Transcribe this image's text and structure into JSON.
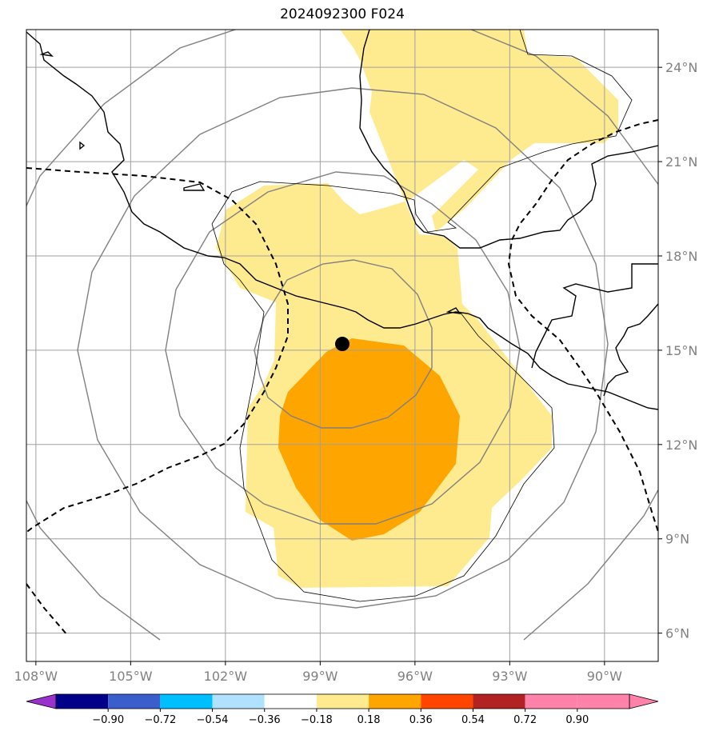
{
  "title": "2024092300 F024",
  "map": {
    "lon_range": [
      -108.3,
      -88.3
    ],
    "lat_range": [
      5.1,
      25.2
    ],
    "lon_ticks": [
      {
        "value": -108,
        "label": "108°W"
      },
      {
        "value": -105,
        "label": "105°W"
      },
      {
        "value": -102,
        "label": "102°W"
      },
      {
        "value": -99,
        "label": "99°W"
      },
      {
        "value": -96,
        "label": "96°W"
      },
      {
        "value": -93,
        "label": "93°W"
      },
      {
        "value": -90,
        "label": "90°W"
      }
    ],
    "lat_ticks": [
      {
        "value": 6,
        "label": "6°N"
      },
      {
        "value": 9,
        "label": "9°N"
      },
      {
        "value": 12,
        "label": "12°N"
      },
      {
        "value": 15,
        "label": "15°N"
      },
      {
        "value": 18,
        "label": "18°N"
      },
      {
        "value": 21,
        "label": "21°N"
      },
      {
        "value": 24,
        "label": "24°N"
      }
    ],
    "grid": true,
    "center_marker": {
      "lon": -98.3,
      "lat": 15.2
    },
    "colors": {
      "level_018_036": "#ffeb8f",
      "level_036_054": "#ffa500",
      "coast": "#000000",
      "grid": "#a0a0a0",
      "range_rings": "#808080"
    }
  },
  "colorbar": {
    "labels": [
      "−0.90",
      "−0.72",
      "−0.54",
      "−0.36",
      "−0.18",
      "0.18",
      "0.36",
      "0.54",
      "0.72",
      "0.90"
    ],
    "colors": [
      "#9932cc",
      "#00008b",
      "#3a5fcd",
      "#00bfff",
      "#b0e2ff",
      "#ffffff",
      "#ffeb8f",
      "#ffa500",
      "#ff4500",
      "#b22222",
      "#ff82ab",
      "#ff82ab"
    ]
  }
}
